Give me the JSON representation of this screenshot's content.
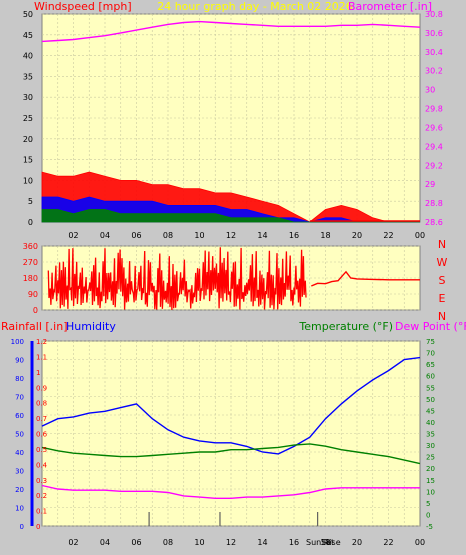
{
  "colors": {
    "background": "#c8c8c8",
    "plot_background": "#ffffc0",
    "grid": "#c8c8a0",
    "wind": "#ff0000",
    "gust": "#ff2020",
    "avg_wind_blue": "#0000ff",
    "avg_wind_green": "#008000",
    "barometer": "#ff00ff",
    "direction": "#ff0000",
    "rainfall": "#ff0000",
    "humidity": "#0000ff",
    "temperature": "#008000",
    "dew_point": "#ff00ff",
    "title": "#ffff00"
  },
  "title": "24 hour graph day - March 02 2026",
  "x_tick_labels": [
    "02",
    "04",
    "06",
    "08",
    "10",
    "12",
    "14",
    "16",
    "18",
    "20",
    "22",
    "00"
  ],
  "chart_data": [
    {
      "type": "line",
      "id": "wind_barometer",
      "ylabel_left": "Windspeed [mph]",
      "ylabel_right": "Barometer [.in]",
      "ylim_left": [
        0,
        50
      ],
      "yticks_left": [
        "0",
        "5",
        "10",
        "15",
        "20",
        "25",
        "30",
        "35",
        "40",
        "45",
        "50"
      ],
      "ylim_right": [
        28.6,
        30.8
      ],
      "yticks_right": [
        "28.6",
        "28.8",
        "29",
        "29.2",
        "29.4",
        "29.6",
        "29.8",
        "30",
        "30.2",
        "30.4",
        "30.6",
        "30.8"
      ],
      "grid": true,
      "x_hours": [
        0,
        1,
        2,
        3,
        4,
        5,
        6,
        7,
        8,
        9,
        10,
        11,
        12,
        13,
        14,
        15,
        16,
        17,
        18,
        19,
        20,
        21,
        22,
        23,
        24
      ],
      "series": [
        {
          "name": "Barometer",
          "axis": "right",
          "values": [
            30.51,
            30.52,
            30.53,
            30.55,
            30.57,
            30.6,
            30.63,
            30.66,
            30.69,
            30.71,
            30.72,
            30.71,
            30.7,
            30.69,
            30.68,
            30.67,
            30.67,
            30.67,
            30.67,
            30.68,
            30.68,
            30.69,
            30.68,
            30.67,
            30.66
          ]
        },
        {
          "name": "Wind gust",
          "axis": "left",
          "values": [
            12,
            11,
            11,
            12,
            11,
            10,
            10,
            9,
            9,
            8,
            8,
            7,
            7,
            6,
            5,
            4,
            2,
            0,
            3,
            4,
            3,
            1,
            0,
            0,
            0
          ]
        },
        {
          "name": "Wind speed",
          "axis": "left",
          "values": [
            6,
            6,
            5,
            6,
            5,
            5,
            5,
            5,
            4,
            4,
            4,
            4,
            3,
            3,
            2,
            1,
            1,
            0,
            1,
            1,
            0,
            0,
            0,
            0,
            0
          ]
        },
        {
          "name": "Wind average",
          "axis": "left",
          "values": [
            3,
            3,
            2,
            3,
            3,
            2,
            2,
            2,
            2,
            2,
            2,
            2,
            1,
            1,
            1,
            1,
            0,
            0,
            0,
            0,
            0,
            0,
            0,
            0,
            0
          ]
        }
      ]
    },
    {
      "type": "line",
      "id": "wind_direction",
      "ylim": [
        0,
        360
      ],
      "yticks": [
        "0",
        "90",
        "180",
        "270",
        "360"
      ],
      "compass_labels": [
        "N",
        "W",
        "S",
        "E",
        "N"
      ],
      "grid": true,
      "series": [
        {
          "name": "Wind direction",
          "x_hours": [
            17.1,
            17.5,
            18,
            18.4,
            18.8,
            19.1,
            19.3,
            19.6,
            20,
            21,
            22,
            23,
            24
          ],
          "values": [
            135,
            150,
            148,
            160,
            165,
            195,
            215,
            180,
            175,
            172,
            170,
            170,
            170
          ]
        }
      ]
    },
    {
      "type": "line",
      "id": "temp_humidity_rain",
      "ylabel_rain": "Rainfall [.in]",
      "ylabel_humidity": "Humidity",
      "ylabel_temp": "Temperature (°F)",
      "ylabel_dew": "Dew Point (°F)",
      "ylim_humidity": [
        0,
        100
      ],
      "yticks_humidity": [
        "0",
        "10",
        "20",
        "30",
        "40",
        "50",
        "60",
        "70",
        "80",
        "90",
        "100"
      ],
      "ylim_rain": [
        0,
        1.2
      ],
      "yticks_rain": [
        "0",
        "0.1",
        "0.2",
        "0.3",
        "0.4",
        "0.5",
        "0.6",
        "0.7",
        "0.8",
        "0.9",
        "1",
        "1.1",
        "1.2"
      ],
      "ylim_temp": [
        -5,
        75
      ],
      "yticks_temp": [
        "-5",
        "0",
        "5",
        "10",
        "15",
        "20",
        "25",
        "30",
        "35",
        "40",
        "45",
        "50",
        "55",
        "60",
        "65",
        "70",
        "75"
      ],
      "sun_labels": [
        "Sun Rise",
        "Set"
      ],
      "grid": true,
      "x_hours": [
        0,
        1,
        2,
        3,
        4,
        5,
        6,
        7,
        8,
        9,
        10,
        11,
        12,
        13,
        14,
        15,
        16,
        17,
        18,
        19,
        20,
        21,
        22,
        23,
        24
      ],
      "series": [
        {
          "name": "Humidity",
          "axis": "humidity",
          "values": [
            54,
            58,
            59,
            61,
            62,
            64,
            66,
            58,
            52,
            48,
            46,
            45,
            45,
            43,
            40,
            39,
            43,
            48,
            58,
            66,
            73,
            79,
            84,
            90,
            91
          ]
        },
        {
          "name": "Temperature",
          "axis": "temp",
          "values": [
            29,
            27.5,
            26.5,
            26,
            25.5,
            25,
            25,
            25.5,
            26,
            26.5,
            27,
            27,
            28,
            28,
            28.5,
            29,
            30,
            30.5,
            29.5,
            28,
            27,
            26,
            25,
            23.5,
            22
          ]
        },
        {
          "name": "Dew Point",
          "axis": "temp",
          "values": [
            12.5,
            11,
            10.5,
            10.5,
            10.5,
            10,
            10,
            10,
            9.5,
            8,
            7.5,
            7,
            7,
            7.5,
            7.5,
            8,
            8.5,
            9.5,
            11,
            11.5,
            11.5,
            11.5,
            11.5,
            11.5,
            11.5
          ]
        }
      ]
    }
  ]
}
